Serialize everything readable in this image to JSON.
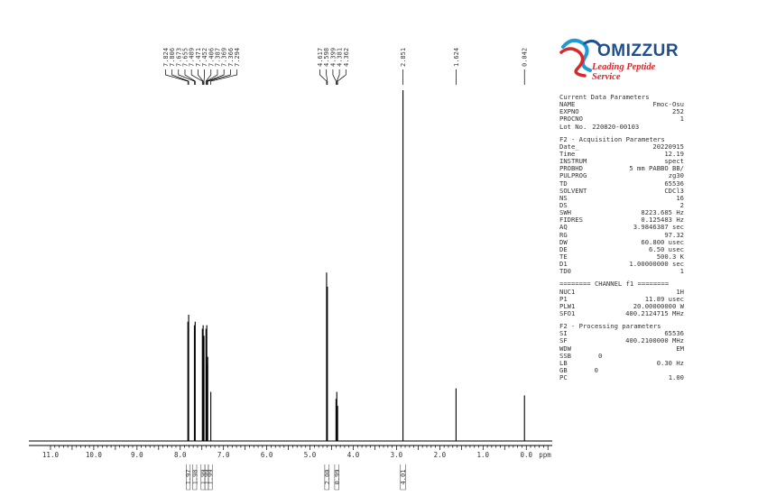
{
  "chart_data": {
    "type": "line",
    "x_axis": {
      "min": 11.5,
      "max": -0.6,
      "reversed": true,
      "ticks": [
        "11.0",
        "10.0",
        "9.0",
        "8.0",
        "7.0",
        "6.0",
        "5.0",
        "4.0",
        "3.0",
        "2.0",
        "1.0",
        "0.0"
      ],
      "unit": "ppm"
    },
    "peaks": [
      {
        "ppm": 7.824,
        "h": 0.34
      },
      {
        "ppm": 7.806,
        "h": 0.36
      },
      {
        "ppm": 7.673,
        "h": 0.33
      },
      {
        "ppm": 7.655,
        "h": 0.34
      },
      {
        "ppm": 7.489,
        "h": 0.32
      },
      {
        "ppm": 7.471,
        "h": 0.33
      },
      {
        "ppm": 7.452,
        "h": 0.3
      },
      {
        "ppm": 7.406,
        "h": 0.32
      },
      {
        "ppm": 7.387,
        "h": 0.33
      },
      {
        "ppm": 7.369,
        "h": 0.22
      },
      {
        "ppm": 7.366,
        "h": 0.24
      },
      {
        "ppm": 7.294,
        "h": 0.14
      },
      {
        "ppm": 4.617,
        "h": 0.48
      },
      {
        "ppm": 4.598,
        "h": 0.44
      },
      {
        "ppm": 4.399,
        "h": 0.12
      },
      {
        "ppm": 4.381,
        "h": 0.14
      },
      {
        "ppm": 4.362,
        "h": 0.1
      },
      {
        "ppm": 2.851,
        "h": 1.0
      },
      {
        "ppm": 1.624,
        "h": 0.15
      },
      {
        "ppm": 0.042,
        "h": 0.13
      }
    ],
    "peak_label_groups": [
      {
        "labels": [
          "7.824",
          "7.806",
          "7.673",
          "7.655",
          "7.489",
          "7.471",
          "7.452",
          "7.406",
          "7.387",
          "7.369",
          "7.366",
          "7.294"
        ]
      },
      {
        "labels": [
          "4.617",
          "4.598",
          "4.399",
          "4.381",
          "4.362"
        ]
      },
      {
        "labels": [
          "2.851"
        ]
      },
      {
        "labels": [
          "1.624"
        ]
      },
      {
        "labels": [
          "0.042"
        ]
      }
    ],
    "integrals": [
      {
        "from": 7.86,
        "to": 7.77,
        "value": "1.97"
      },
      {
        "from": 7.71,
        "to": 7.62,
        "value": "1.98"
      },
      {
        "from": 7.52,
        "to": 7.43,
        "value": "1.99"
      },
      {
        "from": 7.43,
        "to": 7.35,
        "value": "1.99"
      },
      {
        "from": 7.35,
        "to": 7.26,
        "value": "1.99"
      },
      {
        "from": 4.66,
        "to": 4.56,
        "value": "2.00"
      },
      {
        "from": 4.43,
        "to": 4.33,
        "value": "0.99"
      },
      {
        "from": 2.91,
        "to": 2.79,
        "value": "4.01"
      }
    ]
  },
  "logo": {
    "brand": "OMIZZUR",
    "tagline": "Leading Peptide Service"
  },
  "params": {
    "sections": [
      {
        "title": "Current Data Parameters",
        "rows": [
          {
            "k": "NAME",
            "v": "Fmoc-Osu"
          },
          {
            "k": "EXPNO",
            "v": "252"
          },
          {
            "k": "PROCNO",
            "v": "1"
          },
          {
            "k": "Lot No.",
            "v": "220820-00103",
            "inline": true
          }
        ]
      },
      {
        "title": "F2 - Acquisition Parameters",
        "rows": [
          {
            "k": "Date_",
            "v": "20220915"
          },
          {
            "k": "Time",
            "v": "12.19"
          },
          {
            "k": "INSTRUM",
            "v": "spect"
          },
          {
            "k": "PROBHD",
            "v": "5 mm PABBO BB/"
          },
          {
            "k": "PULPROG",
            "v": "zg30"
          },
          {
            "k": "TD",
            "v": "65536"
          },
          {
            "k": "SOLVENT",
            "v": "CDCl3"
          },
          {
            "k": "NS",
            "v": "16"
          },
          {
            "k": "DS",
            "v": "2"
          },
          {
            "k": "SWH",
            "v": "8223.685 Hz"
          },
          {
            "k": "FIDRES",
            "v": "0.125483 Hz"
          },
          {
            "k": "AQ",
            "v": "3.9846387 sec"
          },
          {
            "k": "RG",
            "v": "97.32"
          },
          {
            "k": "DW",
            "v": "60.800 usec"
          },
          {
            "k": "DE",
            "v": "6.50 usec"
          },
          {
            "k": "TE",
            "v": "500.3 K"
          },
          {
            "k": "D1",
            "v": "1.00000000 sec"
          },
          {
            "k": "TD0",
            "v": "1"
          }
        ]
      },
      {
        "title": "======== CHANNEL f1 ========",
        "rows": [
          {
            "k": "NUC1",
            "v": "1H"
          },
          {
            "k": "P1",
            "v": "11.89 usec"
          },
          {
            "k": "PLW1",
            "v": "20.00000000 W"
          },
          {
            "k": "SFO1",
            "v": "400.2124715 MHz"
          }
        ]
      },
      {
        "title": "F2 - Processing parameters",
        "rows": [
          {
            "k": "SI",
            "v": "65536"
          },
          {
            "k": "SF",
            "v": "400.2100000 MHz"
          },
          {
            "k": "WDW",
            "v": "EM"
          },
          {
            "k": "SSB",
            "v": "0",
            "inline": true
          },
          {
            "k": "LB",
            "v": "0.30 Hz"
          },
          {
            "k": "GB",
            "v": "0",
            "inline": true
          },
          {
            "k": "PC",
            "v": "1.00"
          }
        ]
      }
    ]
  }
}
